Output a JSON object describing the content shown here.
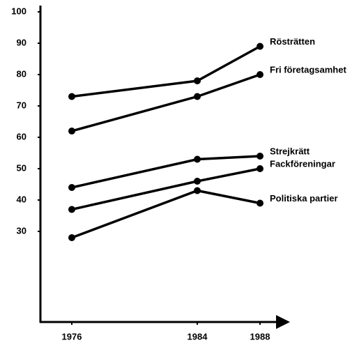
{
  "chart_data": {
    "type": "line",
    "x": [
      1976,
      1984,
      1988
    ],
    "series": [
      {
        "name": "Rösträtten",
        "color": "#000000",
        "values": [
          73,
          78,
          89
        ]
      },
      {
        "name": "Fri företagsamhet",
        "color": "#000000",
        "values": [
          62,
          73,
          80
        ]
      },
      {
        "name": "Strejkrätt",
        "color": "#000000",
        "values": [
          44,
          53,
          54
        ]
      },
      {
        "name": "Fackföreningar",
        "color": "#000000",
        "values": [
          37,
          46,
          50
        ]
      },
      {
        "name": "Politiska partier",
        "color": "#000000",
        "values": [
          28,
          43,
          39
        ]
      }
    ],
    "xlim": [
      1974,
      1990
    ],
    "xticks": [
      1976,
      1984,
      1988
    ],
    "ylim": [
      0,
      100
    ],
    "yticks": [
      30,
      40,
      50,
      60,
      70,
      80,
      90,
      100
    ]
  }
}
